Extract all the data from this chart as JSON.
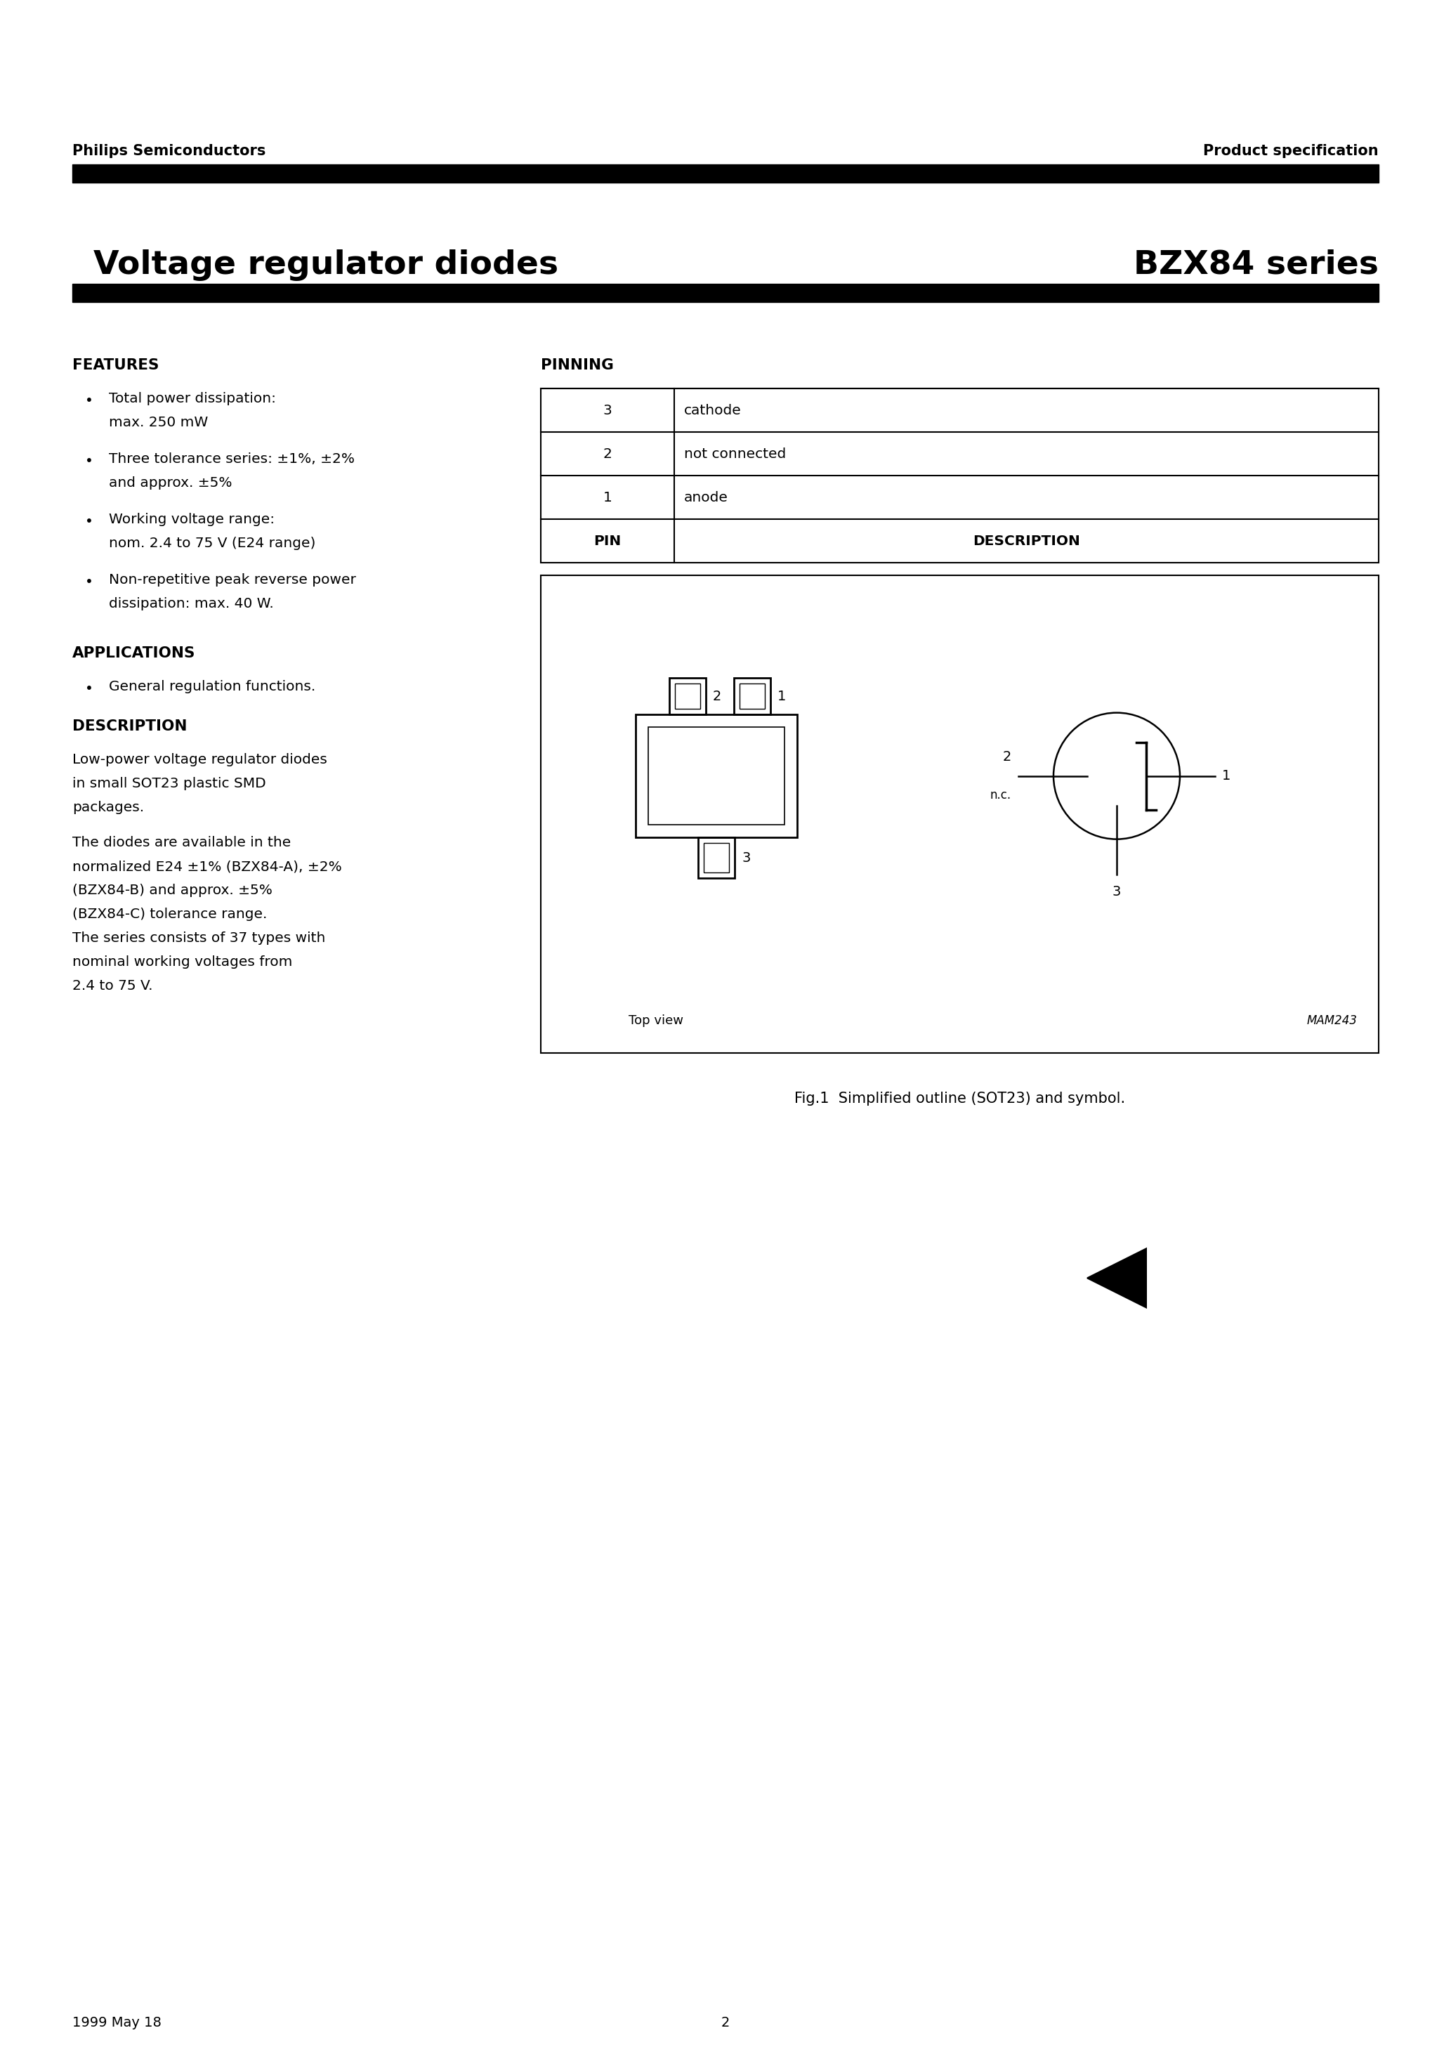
{
  "page_title_left": "Voltage regulator diodes",
  "page_title_right": "BZX84 series",
  "header_left": "Philips Semiconductors",
  "header_right": "Product specification",
  "footer_left": "1999 May 18",
  "footer_center": "2",
  "features_title": "FEATURES",
  "features_bullets": [
    [
      "Total power dissipation:",
      "max. 250 mW"
    ],
    [
      "Three tolerance series: ±1%, ±2%",
      "and approx. ±5%"
    ],
    [
      "Working voltage range:",
      "nom. 2.4 to 75 V (E24 range)"
    ],
    [
      "Non-repetitive peak reverse power",
      "dissipation: max. 40 W."
    ]
  ],
  "applications_title": "APPLICATIONS",
  "applications_bullets": [
    "General regulation functions."
  ],
  "description_title": "DESCRIPTION",
  "description_para1": [
    "Low-power voltage regulator diodes",
    "in small SOT23 plastic SMD",
    "packages."
  ],
  "description_para2": [
    "The diodes are available in the",
    "normalized E24 ±1% (BZX84-A), ±2%",
    "(BZX84-B) and approx. ±5%",
    "(BZX84-C) tolerance range.",
    "The series consists of 37 types with",
    "nominal working voltages from",
    "2.4 to 75 V."
  ],
  "pinning_title": "PINNING",
  "pin_table_headers": [
    "PIN",
    "DESCRIPTION"
  ],
  "pin_table_rows": [
    [
      "1",
      "anode"
    ],
    [
      "2",
      "not connected"
    ],
    [
      "3",
      "cathode"
    ]
  ],
  "fig_caption": "Fig.1  Simplified outline (SOT23) and symbol.",
  "top_view_label": "Top view",
  "mam_label": "MAM243",
  "background_color": "#ffffff",
  "text_color": "#000000",
  "bar_color": "#000000"
}
